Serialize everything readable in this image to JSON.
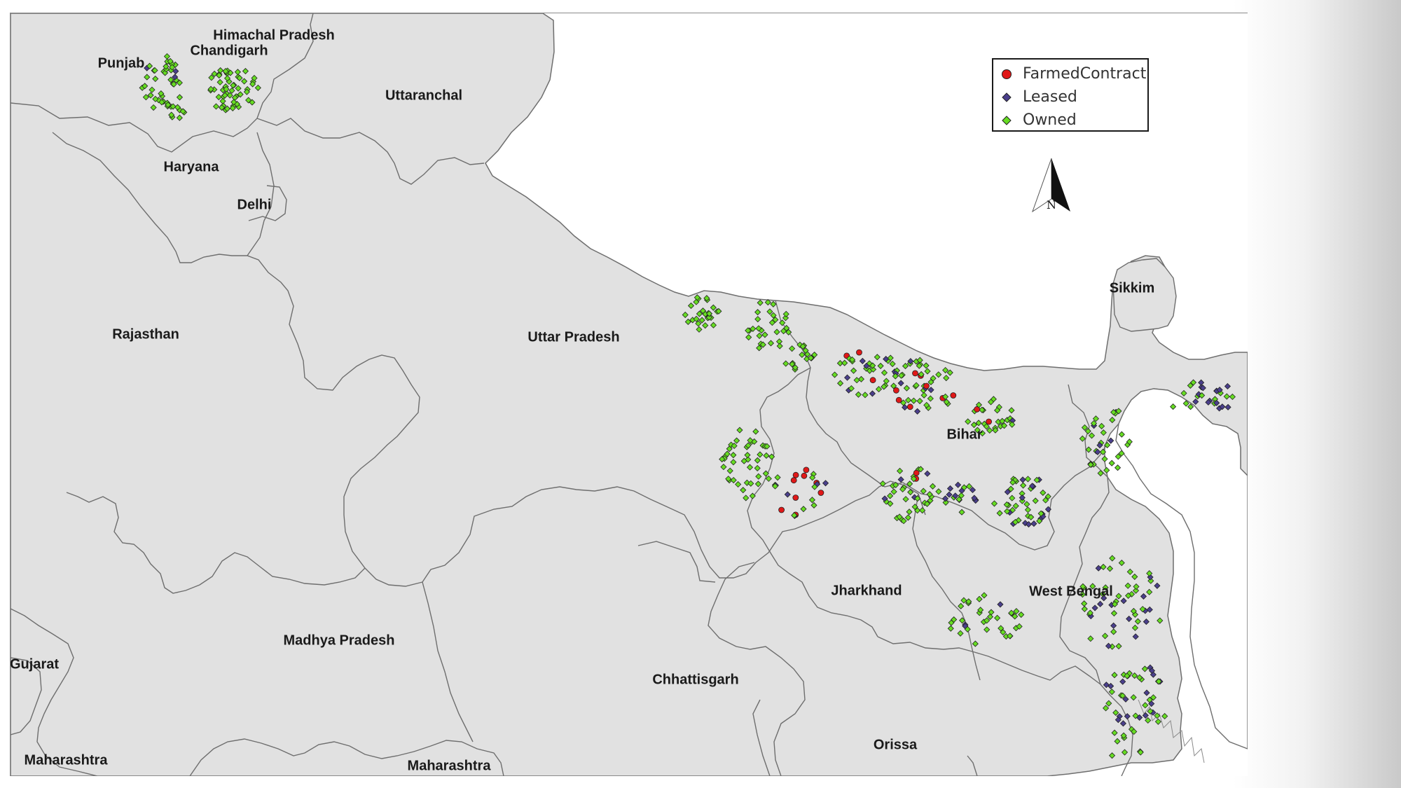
{
  "legend": {
    "items": [
      {
        "label": "FarmedContract",
        "color": "#e01818",
        "shape": "circle"
      },
      {
        "label": "Leased",
        "color": "#4a3f8c",
        "shape": "diamond"
      },
      {
        "label": "Owned",
        "color": "#66dd22",
        "shape": "diamond"
      }
    ]
  },
  "north_arrow": {
    "letter": "N"
  },
  "states": {
    "himachal_pradesh": "Himachal Pradesh",
    "chandigarh": "Chandigarh",
    "punjab": "Punjab",
    "uttaranchal": "Uttaranchal",
    "haryana": "Haryana",
    "delhi": "Delhi",
    "rajasthan": "Rajasthan",
    "uttar_pradesh": "Uttar Pradesh",
    "sikkim": "Sikkim",
    "bihar": "Bihar",
    "jharkhand": "Jharkhand",
    "west_bengal": "West Bengal",
    "madhya_pradesh": "Madhya Pradesh",
    "gujarat": "Gujarat",
    "chhattisgarh": "Chhattisgarh",
    "orissa": "Orissa",
    "maharashtra_west": "Maharashtra",
    "maharashtra_east": "Maharashtra"
  },
  "colors": {
    "land": "#e1e1e1",
    "border": "#6e6e6e",
    "marker_outline": "#222222"
  }
}
